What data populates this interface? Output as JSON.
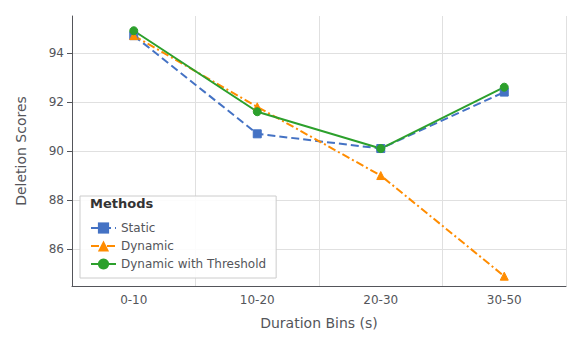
{
  "chart_data": {
    "type": "line",
    "x_label": "Duration Bins (s)",
    "y_label": "Deletion Scores",
    "categories": [
      "0-10",
      "10-20",
      "20-30",
      "30-50"
    ],
    "series": [
      {
        "name": "Static",
        "color": "#4472C4",
        "marker": "square",
        "line_style": "dashed",
        "values": [
          94.7,
          90.7,
          90.1,
          92.4
        ]
      },
      {
        "name": "Dynamic",
        "color": "#FF8C00",
        "marker": "triangle",
        "line_style": "dashdot",
        "values": [
          94.7,
          91.8,
          89.0,
          84.9
        ]
      },
      {
        "name": "Dynamic with Threshold",
        "color": "#2CA02C",
        "marker": "circle",
        "line_style": "solid",
        "values": [
          94.9,
          91.6,
          90.1,
          92.6
        ]
      }
    ],
    "ylim": [
      84.5,
      95.5
    ],
    "yticks": [
      86,
      88,
      90,
      92,
      94
    ],
    "grid": true,
    "legend": "lower left",
    "legend_title": "Methods"
  }
}
